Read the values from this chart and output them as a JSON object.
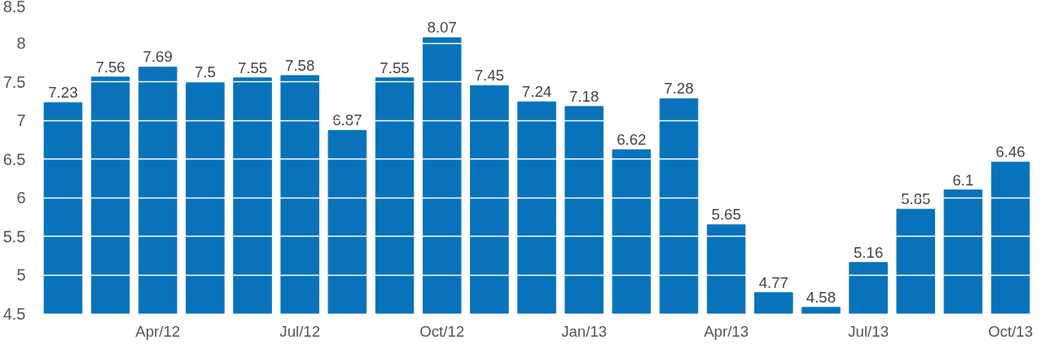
{
  "chart_data": {
    "type": "bar",
    "categories": [
      null,
      null,
      "Apr/12",
      null,
      null,
      "Jul/12",
      null,
      null,
      "Oct/12",
      null,
      null,
      "Jan/13",
      null,
      null,
      "Apr/13",
      null,
      null,
      "Jul/13",
      null,
      null,
      "Oct/13"
    ],
    "values": [
      7.23,
      7.56,
      7.69,
      7.5,
      7.55,
      7.58,
      6.87,
      7.55,
      8.07,
      7.45,
      7.24,
      7.18,
      6.62,
      7.28,
      5.65,
      4.77,
      4.58,
      5.16,
      5.85,
      6.1,
      6.46
    ],
    "color": "#0873bb",
    "ylim": [
      4.5,
      8.5
    ],
    "yticks": [
      4.5,
      5,
      5.5,
      6,
      6.5,
      7,
      7.5,
      8,
      8.5
    ],
    "grid": "y",
    "data_labels": true
  }
}
